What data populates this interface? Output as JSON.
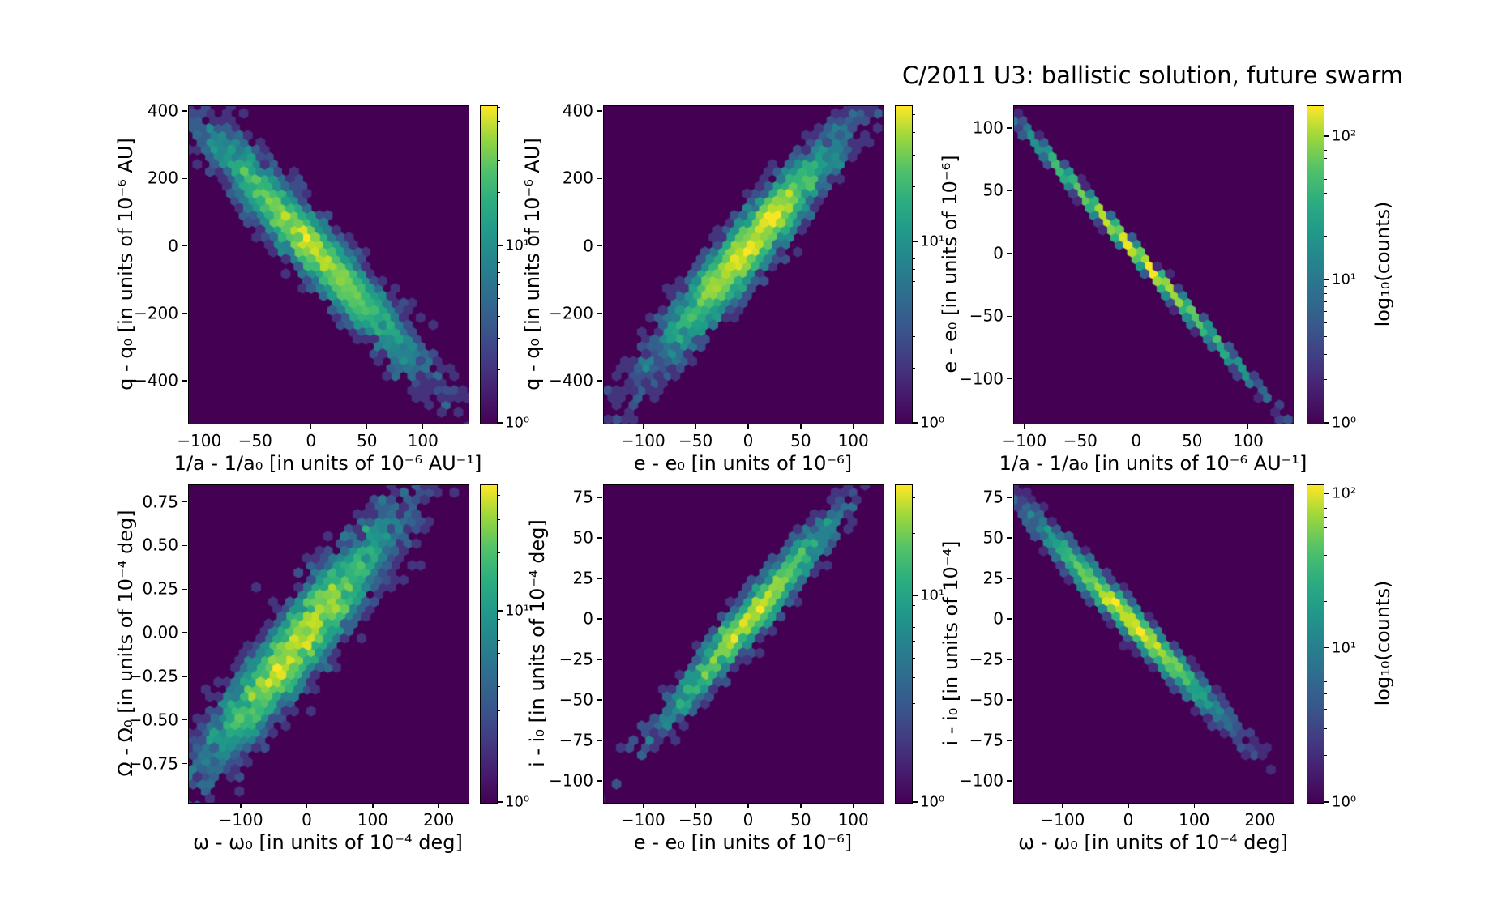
{
  "title": "C/2011 U3: ballistic solution, future swarm",
  "colorbar_label": "log₁₀(counts)",
  "colors": {
    "figure_bg": "#ffffff",
    "plot_bg": "#440154",
    "frame": "#000000",
    "text": "#000000",
    "colormap": "viridis",
    "viridis_min": "#440154",
    "viridis_mid": "#21918c",
    "viridis_max": "#fde725"
  },
  "chart_data": [
    {
      "type": "hexbin",
      "position": "top-left",
      "xlabel": "1/a - 1/a₀ [in units of 10⁻⁶ AU⁻¹]",
      "ylabel": "q - q₀ [in units of 10⁻⁶ AU]",
      "xlim": [
        -110,
        140
      ],
      "ylim": [
        -525,
        417
      ],
      "xticks": [
        -100,
        -50,
        0,
        50,
        100
      ],
      "xtick_labels": [
        "−100",
        "−50",
        "0",
        "50",
        "100"
      ],
      "yticks": [
        400,
        200,
        0,
        -200,
        -400
      ],
      "ytick_labels": [
        "400",
        "200",
        "0",
        "−200",
        "−400"
      ],
      "correlation": "negative",
      "band": {
        "slope": -3.55,
        "intercept": 0,
        "center_x": 0,
        "center_y": 0,
        "sigma_x": 45,
        "sigma_scatter_y": 48,
        "n_points": 4000,
        "shape": "broad diagonal ellipse, bright yellow core at center fading to teal/indigo edges"
      },
      "colorbar": {
        "tick_labels": [
          "10¹",
          "10⁰"
        ],
        "tick_logvalues": [
          1,
          0
        ],
        "log_max": 1.79,
        "label": ""
      }
    },
    {
      "type": "hexbin",
      "position": "top-middle",
      "xlabel": "e - e₀ [in units of 10⁻⁶]",
      "ylabel": "q - q₀ [in units of 10⁻⁶ AU]",
      "xlim": [
        -138,
        128
      ],
      "ylim": [
        -525,
        417
      ],
      "xticks": [
        -100,
        -50,
        0,
        50,
        100
      ],
      "xtick_labels": [
        "−100",
        "−50",
        "0",
        "50",
        "100"
      ],
      "yticks": [
        400,
        200,
        0,
        -200,
        -400
      ],
      "ytick_labels": [
        "400",
        "200",
        "0",
        "−200",
        "−400"
      ],
      "correlation": "positive",
      "band": {
        "slope": 3.6,
        "intercept": 0,
        "center_x": 0,
        "center_y": 0,
        "sigma_x": 42,
        "sigma_scatter_y": 52,
        "n_points": 4000,
        "shape": "broad diagonal ellipse, bright yellow core at center fading to teal/indigo edges"
      },
      "colorbar": {
        "tick_labels": [
          "10¹",
          "10⁰"
        ],
        "tick_logvalues": [
          1,
          0
        ],
        "log_max": 1.75,
        "label": ""
      }
    },
    {
      "type": "hexbin",
      "position": "top-right",
      "xlabel": "1/a - 1/a₀ [in units of 10⁻⁶ AU⁻¹]",
      "ylabel": "e - e₀ [in units of 10⁻⁶]",
      "xlim": [
        -110,
        140
      ],
      "ylim": [
        -135,
        118
      ],
      "xticks": [
        -100,
        -50,
        0,
        50,
        100
      ],
      "xtick_labels": [
        "−100",
        "−50",
        "0",
        "50",
        "100"
      ],
      "yticks": [
        100,
        50,
        0,
        -50,
        -100
      ],
      "ytick_labels": [
        "100",
        "50",
        "0",
        "−50",
        "−100"
      ],
      "correlation": "negative",
      "band": {
        "slope": -0.99,
        "intercept": 0,
        "center_x": 0,
        "center_y": 0,
        "sigma_x": 45,
        "sigma_scatter_y": 2.2,
        "n_points": 3000,
        "shape": "very thin straight diagonal line, yellow in the middle, teal/blue at the ends"
      },
      "colorbar": {
        "tick_labels": [
          "10²",
          "10¹",
          "10⁰"
        ],
        "tick_logvalues": [
          2,
          1,
          0
        ],
        "log_max": 2.215,
        "label": "log₁₀(counts)"
      }
    },
    {
      "type": "hexbin",
      "position": "bottom-left",
      "xlabel": "ω - ω₀ [in units of 10⁻⁴ deg]",
      "ylabel": "Ω - Ω₀ [in units of 10⁻⁴ deg]",
      "xlim": [
        -180,
        244
      ],
      "ylim": [
        -0.97,
        0.85
      ],
      "xticks": [
        -100,
        0,
        100,
        200
      ],
      "xtick_labels": [
        "−100",
        "0",
        "100",
        "200"
      ],
      "yticks": [
        0.75,
        0.5,
        0.25,
        0,
        -0.25,
        -0.5,
        -0.75
      ],
      "ytick_labels": [
        "0.75",
        "0.50",
        "0.25",
        "0.00",
        "−0.25",
        "−0.50",
        "−0.75"
      ],
      "correlation": "positive",
      "band": {
        "slope": 0.0045,
        "intercept": 0,
        "center_x": -15,
        "center_y": -0.06,
        "sigma_x": 72,
        "sigma_scatter_y": 0.125,
        "n_points": 4500,
        "shape": "wide fuzzy diagonal cloud, yellow-green core slightly left/below center"
      },
      "colorbar": {
        "tick_labels": [
          "10¹",
          "10⁰"
        ],
        "tick_logvalues": [
          1,
          0
        ],
        "log_max": 1.66,
        "label": ""
      }
    },
    {
      "type": "hexbin",
      "position": "bottom-middle",
      "xlabel": "e - e₀ [in units of 10⁻⁶]",
      "ylabel": "i - i₀ [in units of 10⁻⁴ deg]",
      "xlim": [
        -138,
        128
      ],
      "ylim": [
        -113,
        83
      ],
      "xticks": [
        -100,
        -50,
        0,
        50,
        100
      ],
      "xtick_labels": [
        "−100",
        "−50",
        "0",
        "50",
        "100"
      ],
      "yticks": [
        75,
        50,
        25,
        0,
        -25,
        -50,
        -75,
        -100
      ],
      "ytick_labels": [
        "75",
        "50",
        "25",
        "0",
        "−25",
        "−50",
        "−75",
        "−100"
      ],
      "correlation": "positive",
      "band": {
        "slope": 0.75,
        "intercept": 0,
        "center_x": 0,
        "center_y": 0,
        "sigma_x": 40,
        "sigma_scatter_y": 7.5,
        "n_points": 2200,
        "shape": "narrow diagonal band, yellow core at center"
      },
      "colorbar": {
        "tick_labels": [
          "10¹",
          "10⁰"
        ],
        "tick_logvalues": [
          1,
          0
        ],
        "log_max": 1.54,
        "label": ""
      }
    },
    {
      "type": "hexbin",
      "position": "bottom-right",
      "xlabel": "ω - ω₀ [in units of 10⁻⁴ deg]",
      "ylabel": "i - i₀ [in units of 10⁻⁴]",
      "xlim": [
        -175,
        250
      ],
      "ylim": [
        -113,
        83
      ],
      "xticks": [
        -100,
        0,
        100,
        200
      ],
      "xtick_labels": [
        "−100",
        "0",
        "100",
        "200"
      ],
      "yticks": [
        75,
        50,
        25,
        0,
        -25,
        -50,
        -75,
        -100
      ],
      "ytick_labels": [
        "75",
        "50",
        "25",
        "0",
        "−25",
        "−50",
        "−75",
        "−100"
      ],
      "correlation": "negative",
      "band": {
        "slope": -0.42,
        "intercept": 0,
        "center_x": 0,
        "center_y": 0,
        "sigma_x": 64,
        "sigma_scatter_y": 4.5,
        "n_points": 4000,
        "shape": "narrow diagonal band, yellow core at center, teal at ends"
      },
      "colorbar": {
        "tick_labels": [
          "10²",
          "10¹",
          "10⁰"
        ],
        "tick_logvalues": [
          2,
          1,
          0
        ],
        "log_max": 2.06,
        "label": "log₁₀(counts)"
      }
    }
  ]
}
